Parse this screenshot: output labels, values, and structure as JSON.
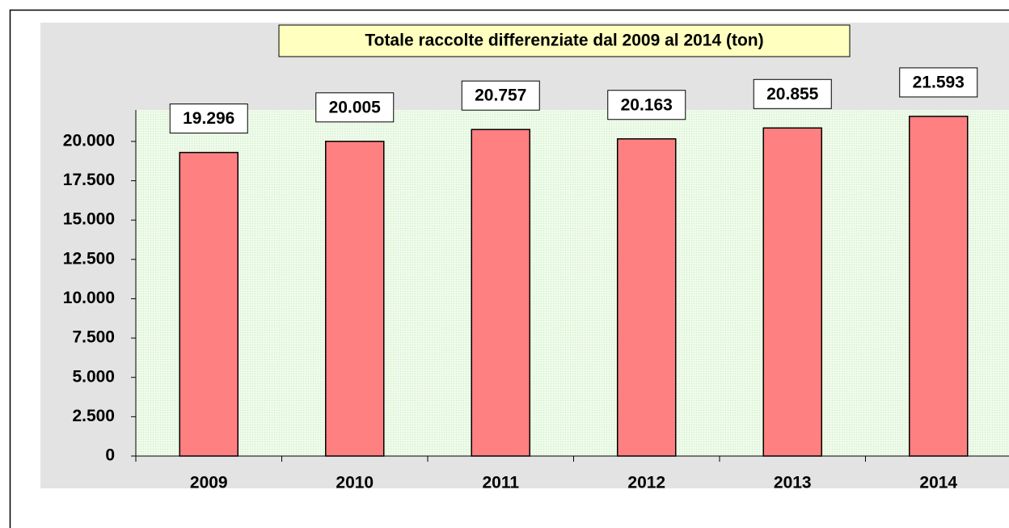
{
  "chart_data": {
    "type": "bar",
    "title": "Totale raccolte differenziate dal 2009 al 2014 (ton)",
    "categories": [
      "2009",
      "2010",
      "2011",
      "2012",
      "2013",
      "2014"
    ],
    "values": [
      19296,
      20005,
      20757,
      20163,
      20855,
      21593
    ],
    "value_labels": [
      "19.296",
      "20.005",
      "20.757",
      "20.163",
      "20.855",
      "21.593"
    ],
    "color": "#ff8080",
    "ylim": [
      0,
      22000
    ],
    "yticks": [
      0,
      {
        "value": 2500,
        "label": "2.500"
      },
      {
        "value": 5000,
        "label": "5.000"
      },
      {
        "value": 7500,
        "label": "7.500"
      },
      {
        "value": 10000,
        "label": "10.000"
      },
      {
        "value": 12500,
        "label": "12.500"
      },
      {
        "value": 15000,
        "label": "15.000"
      },
      {
        "value": 17500,
        "label": "17.500"
      },
      {
        "value": 20000,
        "label": "20.000"
      }
    ],
    "grid": false
  }
}
